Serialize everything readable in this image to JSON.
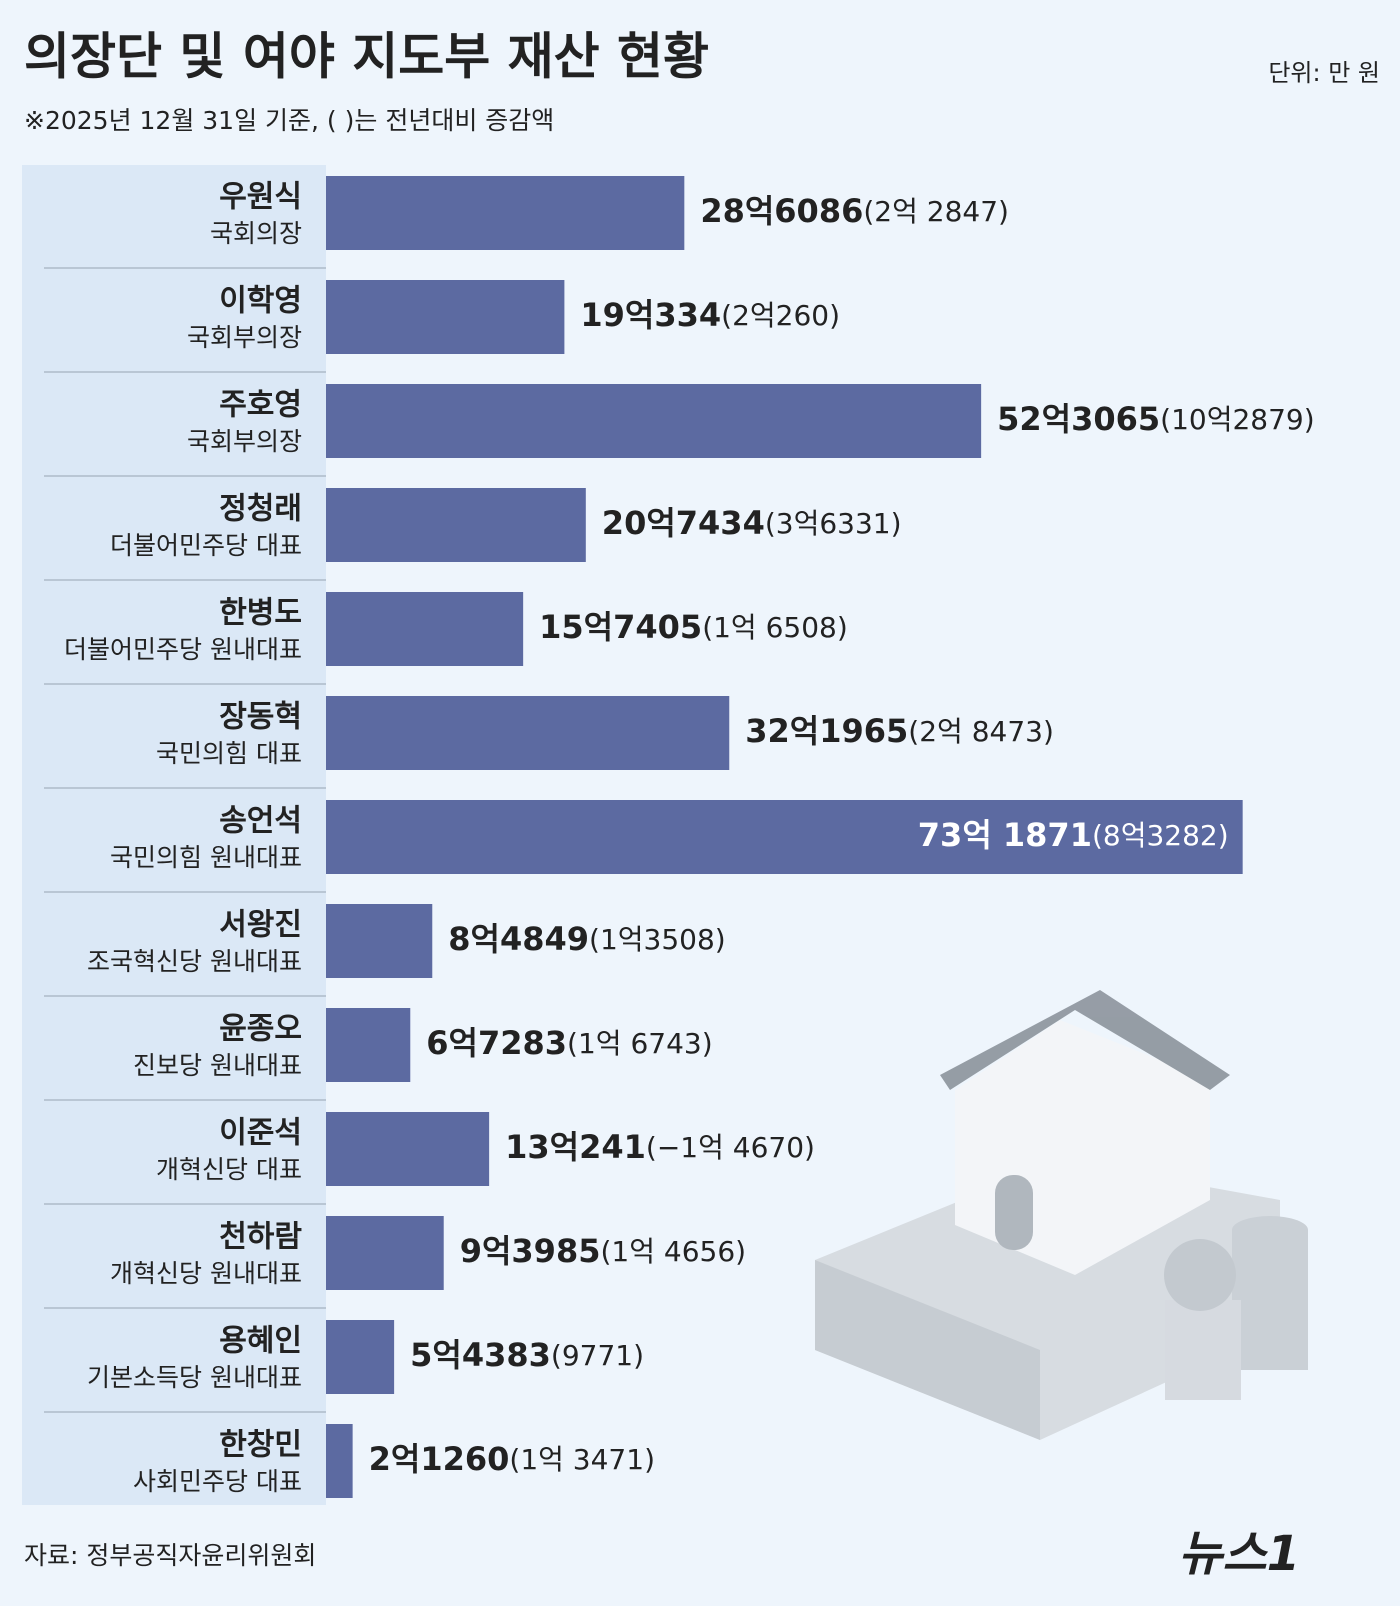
{
  "title": "의장단 및 여야 지도부 재산 현황",
  "subtitle": "※2025년 12월 31일 기준, ( )는 전년대비 증감액",
  "unit": "단위: 만 원",
  "source": "자료: 정부공직자윤리위원회",
  "logo": "뉴스1",
  "chart_data": {
    "type": "bar",
    "orientation": "horizontal",
    "color": "#5c6aa1",
    "categories": [
      "우원식",
      "이학영",
      "주호영",
      "정청래",
      "한병도",
      "장동혁",
      "송언석",
      "서왕진",
      "윤종오",
      "이준석",
      "천하람",
      "용혜인",
      "한창민"
    ],
    "roles": [
      "국회의장",
      "국회부의장",
      "국회부의장",
      "더불어민주당 대표",
      "더불어민주당 원내대표",
      "국민의힘 대표",
      "국민의힘 원내대표",
      "조국혁신당 원내대표",
      "진보당 원내대표",
      "개혁신당 대표",
      "개혁신당 원내대표",
      "기본소득당 원내대표",
      "사회민주당 대표"
    ],
    "values": [
      286086,
      190334,
      523065,
      207434,
      157405,
      321965,
      731871,
      84849,
      67283,
      130241,
      93985,
      54383,
      21260
    ],
    "value_labels": [
      "28억6086",
      "19억334",
      "52억3065",
      "20억7434",
      "15억7405",
      "32억1965",
      "73억 1871",
      "8억4849",
      "6억7283",
      "13억241",
      "9억3985",
      "5억4383",
      "2억1260"
    ],
    "changes": [
      "(2억 2847)",
      "(2억260)",
      "(10억2879)",
      "(3억6331)",
      "(1억 6508)",
      "(2억 8473)",
      "(8억3282)",
      "(1억3508)",
      "(1억 6743)",
      "(−1억 4670)",
      "(1억 4656)",
      "(9771)",
      "(1억 3471)"
    ],
    "xlim": [
      0,
      800000
    ]
  }
}
